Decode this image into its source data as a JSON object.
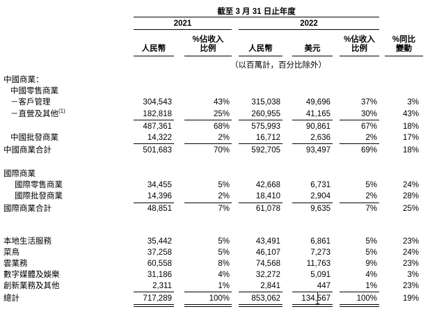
{
  "table": {
    "period_header": "截至 3 月 31 日止年度",
    "years": {
      "y2021": "2021",
      "y2022": "2022"
    },
    "columns": [
      {
        "line1": "",
        "line2": "人民幣"
      },
      {
        "line1": "%佔收入",
        "line2": "比例"
      },
      {
        "line1": "",
        "line2": "人民幣"
      },
      {
        "line1": "",
        "line2": "美元"
      },
      {
        "line1": "%佔收入",
        "line2": "比例"
      },
      {
        "line1": "%同比",
        "line2": "變動"
      }
    ],
    "units_note": "（以百萬計，百分比除外）",
    "sections": [
      {
        "rows": [
          {
            "label": "中國商業：",
            "indent": 0,
            "values": null
          },
          {
            "label": "中國零售商業",
            "indent": 1,
            "values": null
          },
          {
            "label": "－客戶管理",
            "indent": 1,
            "values": [
              "304,543",
              "43%",
              "315,038",
              "49,696",
              "37%",
              "3%"
            ]
          },
          {
            "label": "－直營及其他",
            "footnote": "(1)",
            "indent": 1,
            "values": [
              "182,818",
              "25%",
              "260,955",
              "41,165",
              "30%",
              "43%"
            ],
            "rule": true
          },
          {
            "label": "",
            "indent": 0,
            "values": [
              "487,361",
              "68%",
              "575,993",
              "90,861",
              "67%",
              "18%"
            ]
          },
          {
            "label": "中國批發商業",
            "indent": 1,
            "values": [
              "14,322",
              "2%",
              "16,712",
              "2,636",
              "2%",
              "17%"
            ],
            "rule": true
          },
          {
            "label": "中國商業合計",
            "indent": 0,
            "values": [
              "501,683",
              "70%",
              "592,705",
              "93,497",
              "69%",
              "18%"
            ]
          }
        ]
      },
      {
        "rows": [
          {
            "label": "國際商業",
            "indent": 0,
            "values": null
          },
          {
            "label": "國際零售商業",
            "indent": 2,
            "values": [
              "34,455",
              "5%",
              "42,668",
              "6,731",
              "5%",
              "24%"
            ]
          },
          {
            "label": "國際批發商業",
            "indent": 2,
            "values": [
              "14,396",
              "2%",
              "18,410",
              "2,904",
              "2%",
              "28%"
            ],
            "rule": true
          },
          {
            "label": "國際商業合計",
            "indent": 0,
            "values": [
              "48,851",
              "7%",
              "61,078",
              "9,635",
              "7%",
              "25%"
            ]
          }
        ]
      },
      {
        "rows": [
          {
            "label": "本地生活服務",
            "indent": 0,
            "values": [
              "35,442",
              "5%",
              "43,491",
              "6,861",
              "5%",
              "23%"
            ]
          },
          {
            "label": "菜鳥",
            "indent": 0,
            "values": [
              "37,258",
              "5%",
              "46,107",
              "7,273",
              "5%",
              "24%"
            ]
          },
          {
            "label": "雲業務",
            "indent": 0,
            "values": [
              "60,558",
              "8%",
              "74,568",
              "11,763",
              "9%",
              "23%"
            ]
          },
          {
            "label": "數字媒體及娛樂",
            "indent": 0,
            "values": [
              "31,186",
              "4%",
              "32,272",
              "5,091",
              "4%",
              "3%"
            ]
          },
          {
            "label": "創新業務及其他",
            "indent": 0,
            "values": [
              "2,311",
              "1%",
              "2,841",
              "447",
              "1%",
              "23%"
            ],
            "rule": true
          },
          {
            "label": "總計",
            "indent": 0,
            "values": [
              "717,289",
              "100%",
              "853,062",
              "134,567",
              "100%",
              "19%"
            ],
            "total": true
          }
        ]
      }
    ]
  }
}
